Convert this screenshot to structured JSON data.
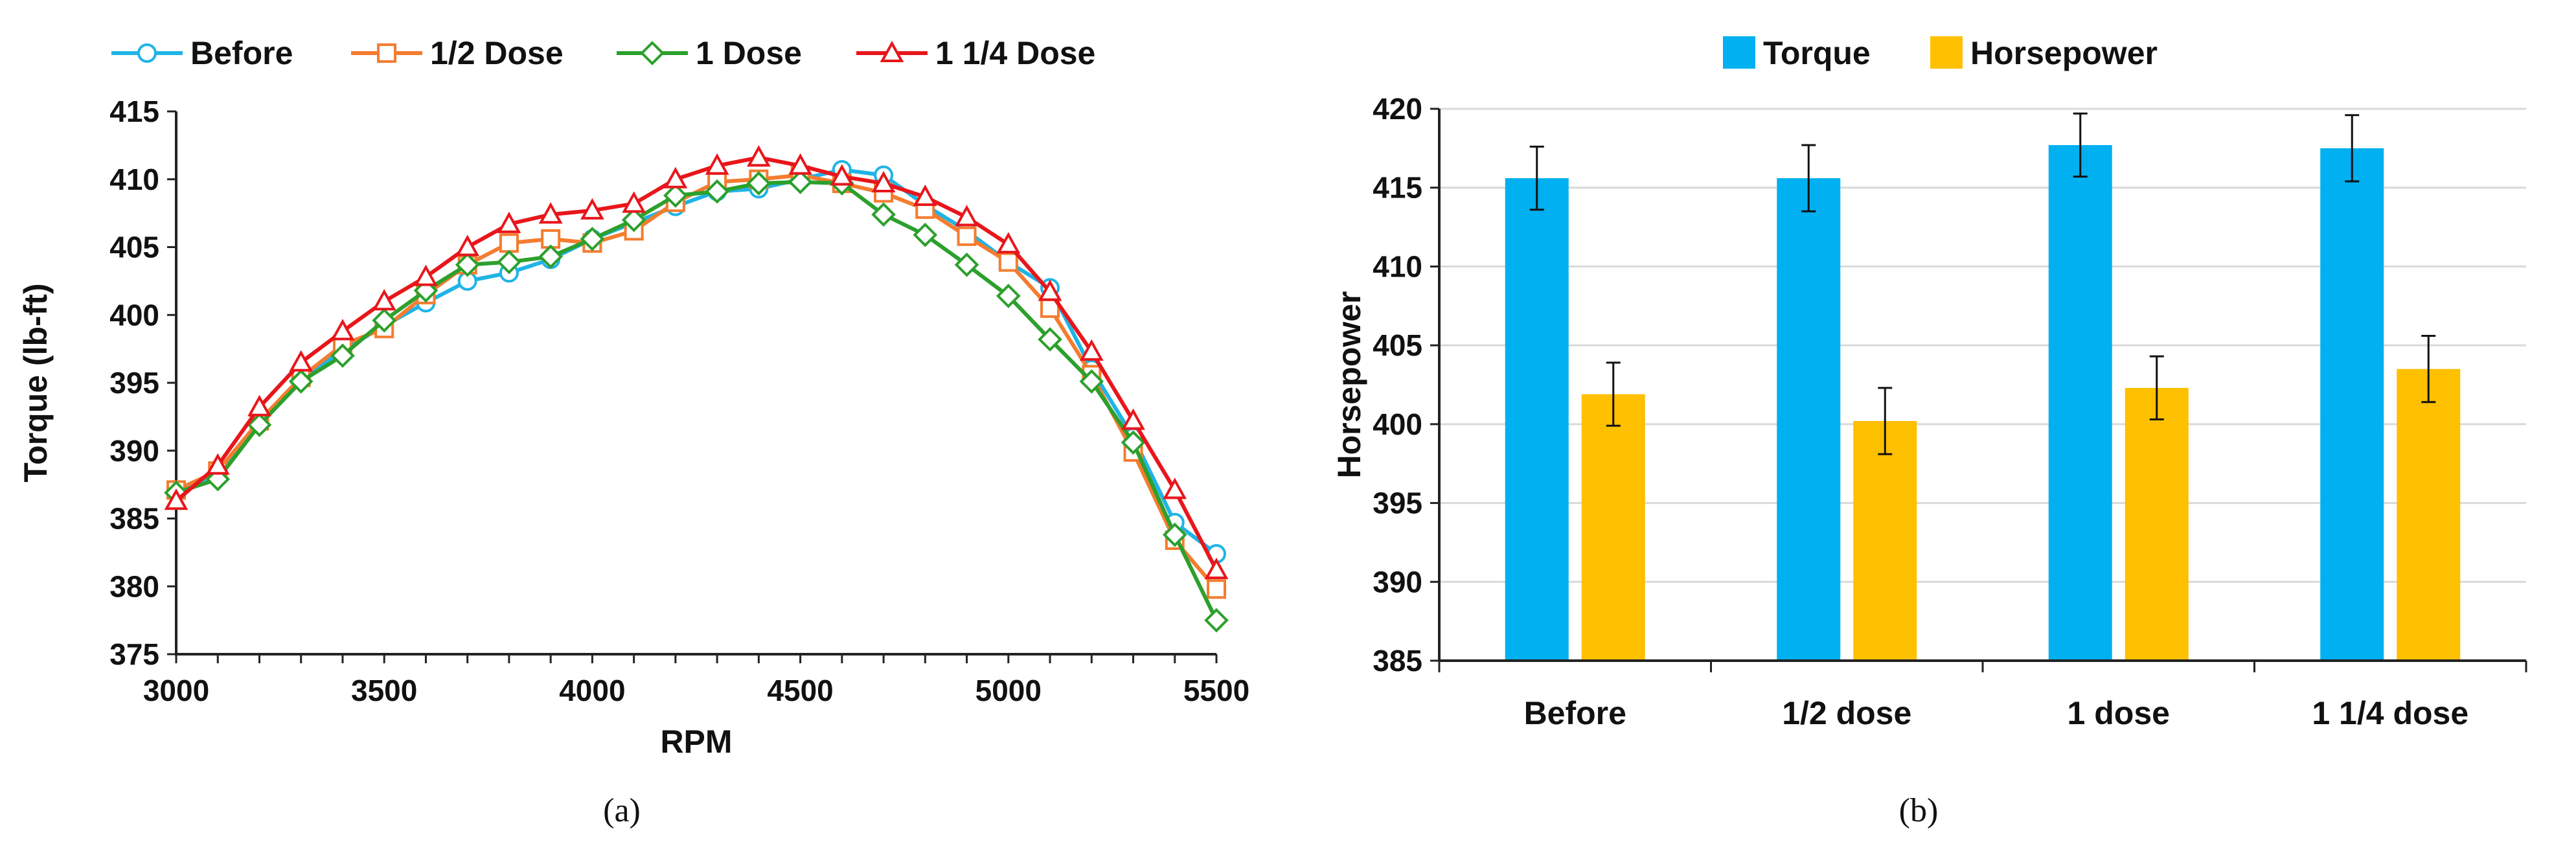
{
  "chart_data": [
    {
      "type": "line",
      "xlabel": "RPM",
      "ylabel": "Torque (lb-ft)",
      "xlim": [
        3000,
        5500
      ],
      "ylim": [
        375,
        415
      ],
      "xticks": [
        3000,
        3500,
        4000,
        4500,
        5000,
        5500
      ],
      "yticks": [
        375,
        380,
        385,
        390,
        395,
        400,
        405,
        410,
        415
      ],
      "xtick_labels": [
        "3000",
        "3500",
        "4000",
        "4500",
        "5000",
        "5500"
      ],
      "ytick_labels": [
        "375",
        "380",
        "385",
        "390",
        "395",
        "400",
        "405",
        "410",
        "415"
      ],
      "legend": "top",
      "caption": "(a)",
      "x": [
        3000,
        3100,
        3200,
        3300,
        3400,
        3500,
        3600,
        3700,
        3800,
        3900,
        4000,
        4100,
        4200,
        4300,
        4400,
        4500,
        4600,
        4700,
        4800,
        4900,
        5000,
        5100,
        5200,
        5300,
        5400,
        5500
      ],
      "series": [
        {
          "name": "Before",
          "color": "#1fb4e6",
          "marker": "circle",
          "values": [
            387.0,
            388.3,
            392.0,
            395.2,
            397.4,
            399.2,
            400.9,
            402.5,
            403.1,
            404.1,
            405.6,
            406.8,
            408.0,
            409.1,
            409.3,
            410.0,
            410.7,
            410.3,
            408.1,
            406.2,
            403.9,
            402.0,
            396.0,
            391.0,
            384.7,
            382.4
          ]
        },
        {
          "name": "1/2 Dose",
          "color": "#f47c2f",
          "marker": "square",
          "values": [
            387.1,
            388.5,
            392.2,
            395.4,
            397.8,
            399.0,
            401.5,
            403.7,
            405.3,
            405.6,
            405.3,
            406.2,
            408.3,
            409.8,
            410.0,
            410.3,
            409.7,
            409.0,
            407.8,
            405.8,
            403.9,
            400.5,
            395.6,
            389.9,
            383.4,
            379.8
          ]
        },
        {
          "name": "1 Dose",
          "color": "#2ca02c",
          "marker": "diamond",
          "values": [
            386.9,
            387.9,
            391.9,
            395.1,
            397.0,
            399.6,
            401.8,
            403.7,
            403.9,
            404.3,
            405.6,
            407.0,
            408.8,
            409.1,
            409.7,
            409.8,
            409.7,
            407.4,
            405.9,
            403.7,
            401.4,
            398.2,
            395.1,
            390.6,
            383.8,
            377.5
          ]
        },
        {
          "name": "1 1/4 Dose",
          "color": "#e8161b",
          "marker": "triangle",
          "values": [
            386.3,
            388.9,
            393.2,
            396.5,
            398.8,
            401.0,
            402.8,
            405.0,
            406.7,
            407.4,
            407.7,
            408.2,
            410.0,
            411.0,
            411.6,
            411.0,
            410.2,
            409.7,
            408.7,
            407.2,
            405.2,
            401.7,
            397.3,
            392.2,
            387.1,
            381.2
          ]
        }
      ]
    },
    {
      "type": "bar",
      "ylabel": "Horsepower",
      "xlabel": "",
      "ylim": [
        385,
        420
      ],
      "yticks": [
        385,
        390,
        395,
        400,
        405,
        410,
        415,
        420
      ],
      "ytick_labels": [
        "385",
        "390",
        "395",
        "400",
        "405",
        "410",
        "415",
        "420"
      ],
      "legend": "top",
      "caption": "(b)",
      "categories": [
        "Before",
        "1/2 dose",
        "1 dose",
        "1 1/4 dose"
      ],
      "series": [
        {
          "name": "Torque",
          "color": "#00b0f0",
          "values": [
            415.6,
            415.6,
            417.7,
            417.5
          ],
          "errors": [
            2.0,
            2.1,
            2.0,
            2.1
          ]
        },
        {
          "name": "Horsepower",
          "color": "#ffc000",
          "values": [
            401.9,
            400.2,
            402.3,
            403.5
          ],
          "errors": [
            2.0,
            2.1,
            2.0,
            2.1
          ]
        }
      ]
    }
  ]
}
